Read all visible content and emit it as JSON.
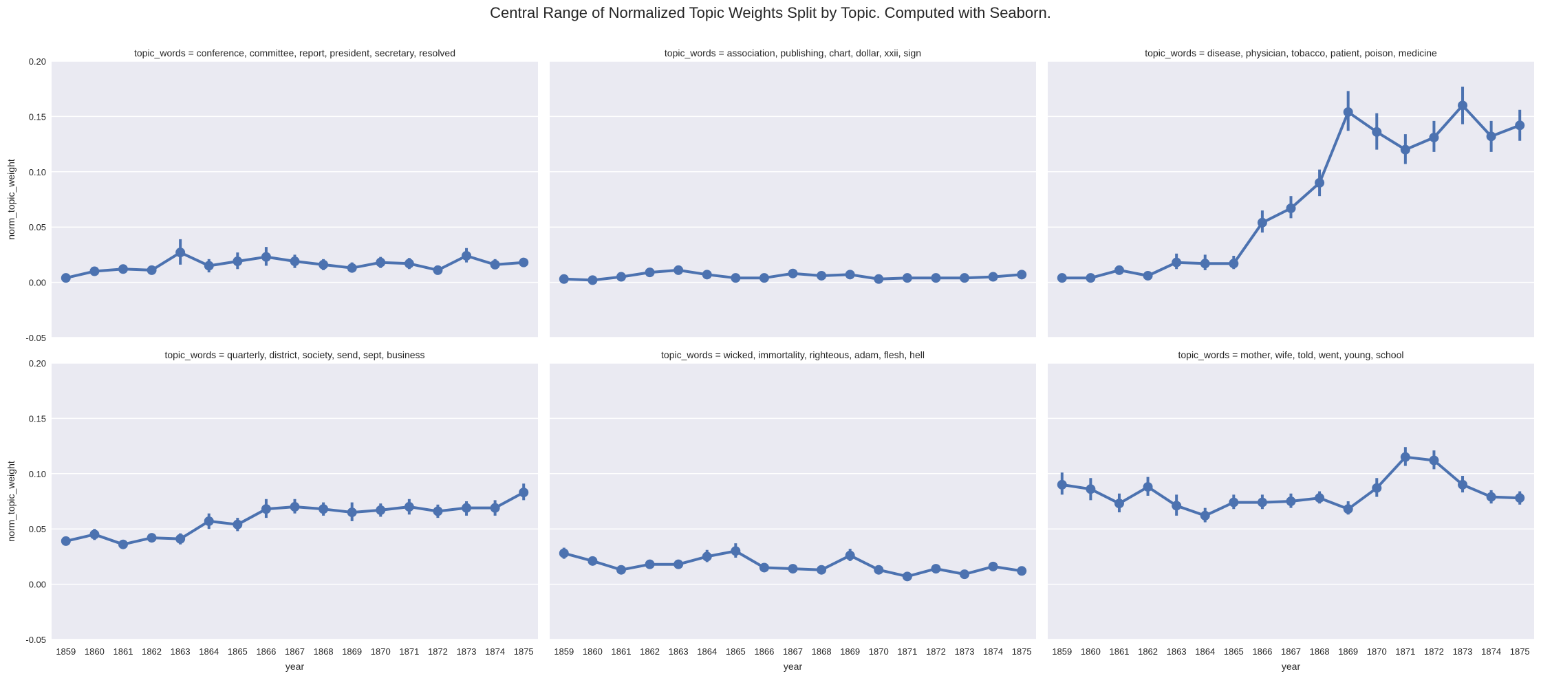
{
  "title": "Central Range of Normalized Topic Weights Split by Topic. Computed with Seaborn.",
  "chart_data": {
    "type": "line",
    "title": "Central Range of Normalized Topic Weights Split by Topic. Computed with Seaborn.",
    "xlabel": "year",
    "ylabel": "norm_topic_weight",
    "ylim": [
      -0.05,
      0.2
    ],
    "yticks": [
      "-0.05",
      "0.00",
      "0.05",
      "0.10",
      "0.15",
      "0.20"
    ],
    "categories": [
      "1859",
      "1860",
      "1861",
      "1862",
      "1863",
      "1864",
      "1865",
      "1866",
      "1867",
      "1868",
      "1869",
      "1870",
      "1871",
      "1872",
      "1873",
      "1874",
      "1875"
    ],
    "grid": true,
    "layout": "2 rows x 3 columns, shared axes",
    "color": "#4c72b0",
    "panels": [
      {
        "title": "topic_words = conference, committee, report, president, secretary, resolved",
        "values": [
          0.004,
          0.01,
          0.012,
          0.011,
          0.027,
          0.015,
          0.019,
          0.023,
          0.019,
          0.016,
          0.013,
          0.018,
          0.017,
          0.011,
          0.024,
          0.016,
          0.018
        ],
        "err_low": [
          0.003,
          0.007,
          0.009,
          0.008,
          0.016,
          0.009,
          0.012,
          0.015,
          0.013,
          0.011,
          0.009,
          0.013,
          0.012,
          0.009,
          0.018,
          0.012,
          0.014
        ],
        "err_high": [
          0.006,
          0.013,
          0.016,
          0.014,
          0.039,
          0.021,
          0.027,
          0.032,
          0.025,
          0.021,
          0.018,
          0.023,
          0.022,
          0.014,
          0.031,
          0.021,
          0.022
        ]
      },
      {
        "title": "topic_words = association, publishing, chart, dollar, xxii, sign",
        "values": [
          0.003,
          0.002,
          0.005,
          0.009,
          0.011,
          0.007,
          0.004,
          0.004,
          0.008,
          0.006,
          0.007,
          0.003,
          0.004,
          0.004,
          0.004,
          0.005,
          0.007
        ],
        "err_low": [
          0.002,
          0.001,
          0.003,
          0.007,
          0.009,
          0.005,
          0.003,
          0.003,
          0.006,
          0.005,
          0.005,
          0.002,
          0.003,
          0.003,
          0.003,
          0.004,
          0.006
        ],
        "err_high": [
          0.004,
          0.003,
          0.007,
          0.011,
          0.014,
          0.009,
          0.006,
          0.006,
          0.011,
          0.008,
          0.01,
          0.005,
          0.006,
          0.006,
          0.006,
          0.007,
          0.009
        ]
      },
      {
        "title": "topic_words = disease, physician, tobacco, patient, poison, medicine",
        "values": [
          0.004,
          0.004,
          0.011,
          0.006,
          0.018,
          0.017,
          0.017,
          0.054,
          0.067,
          0.09,
          0.154,
          0.136,
          0.12,
          0.131,
          0.16,
          0.132,
          0.142
        ],
        "err_low": [
          0.003,
          0.003,
          0.008,
          0.004,
          0.012,
          0.011,
          0.012,
          0.045,
          0.058,
          0.078,
          0.137,
          0.12,
          0.107,
          0.118,
          0.143,
          0.118,
          0.128
        ],
        "err_high": [
          0.006,
          0.006,
          0.015,
          0.009,
          0.026,
          0.025,
          0.024,
          0.065,
          0.078,
          0.102,
          0.173,
          0.153,
          0.134,
          0.146,
          0.177,
          0.146,
          0.156
        ]
      },
      {
        "title": "topic_words = quarterly, district, society, send, sept, business",
        "values": [
          0.039,
          0.045,
          0.036,
          0.042,
          0.041,
          0.057,
          0.054,
          0.068,
          0.07,
          0.068,
          0.065,
          0.067,
          0.07,
          0.066,
          0.069,
          0.069,
          0.083
        ],
        "err_low": [
          0.036,
          0.04,
          0.033,
          0.038,
          0.036,
          0.05,
          0.048,
          0.06,
          0.064,
          0.062,
          0.057,
          0.061,
          0.063,
          0.06,
          0.062,
          0.062,
          0.076
        ],
        "err_high": [
          0.042,
          0.05,
          0.039,
          0.046,
          0.046,
          0.064,
          0.06,
          0.077,
          0.077,
          0.074,
          0.074,
          0.073,
          0.077,
          0.072,
          0.075,
          0.076,
          0.091
        ]
      },
      {
        "title": "topic_words = wicked, immortality, righteous, adam, flesh, hell",
        "values": [
          0.028,
          0.021,
          0.013,
          0.018,
          0.018,
          0.025,
          0.03,
          0.015,
          0.014,
          0.013,
          0.026,
          0.013,
          0.007,
          0.014,
          0.009,
          0.016,
          0.012
        ],
        "err_low": [
          0.023,
          0.017,
          0.011,
          0.015,
          0.015,
          0.02,
          0.024,
          0.013,
          0.012,
          0.011,
          0.021,
          0.011,
          0.006,
          0.012,
          0.007,
          0.014,
          0.01
        ],
        "err_high": [
          0.033,
          0.025,
          0.016,
          0.021,
          0.021,
          0.031,
          0.037,
          0.018,
          0.017,
          0.016,
          0.032,
          0.016,
          0.009,
          0.017,
          0.011,
          0.019,
          0.015
        ]
      },
      {
        "title": "topic_words = mother, wife, told, went, young, school",
        "values": [
          0.09,
          0.086,
          0.073,
          0.088,
          0.071,
          0.062,
          0.074,
          0.074,
          0.075,
          0.078,
          0.068,
          0.087,
          0.115,
          0.112,
          0.09,
          0.079,
          0.078
        ],
        "err_low": [
          0.081,
          0.076,
          0.065,
          0.08,
          0.062,
          0.056,
          0.068,
          0.068,
          0.069,
          0.073,
          0.063,
          0.079,
          0.107,
          0.104,
          0.083,
          0.073,
          0.072
        ],
        "err_high": [
          0.101,
          0.096,
          0.082,
          0.097,
          0.081,
          0.069,
          0.081,
          0.081,
          0.082,
          0.084,
          0.075,
          0.096,
          0.124,
          0.121,
          0.098,
          0.085,
          0.084
        ]
      }
    ]
  }
}
